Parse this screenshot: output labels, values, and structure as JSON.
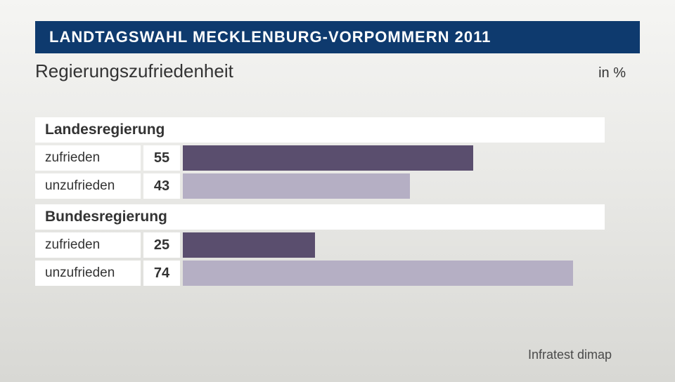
{
  "header": {
    "title": "LANDTAGSWAHL MECKLENBURG-VORPOMMERN 2011",
    "subtitle": "Regierungszufriedenheit",
    "unit": "in %"
  },
  "chart": {
    "type": "bar",
    "max_value": 80,
    "colors": {
      "dark_bar": "#5a4e6e",
      "light_bar": "#b5afc4",
      "background": "#ffffff",
      "text": "#333333",
      "header_bg": "#0e3a6e",
      "header_text": "#ffffff"
    },
    "sections": [
      {
        "title": "Landesregierung",
        "rows": [
          {
            "label": "zufrieden",
            "value": 55,
            "color": "#5a4e6e"
          },
          {
            "label": "unzufrieden",
            "value": 43,
            "color": "#b5afc4"
          }
        ]
      },
      {
        "title": "Bundesregierung",
        "rows": [
          {
            "label": "zufrieden",
            "value": 25,
            "color": "#5a4e6e"
          },
          {
            "label": "unzufrieden",
            "value": 74,
            "color": "#b5afc4"
          }
        ]
      }
    ]
  },
  "source": "Infratest dimap"
}
